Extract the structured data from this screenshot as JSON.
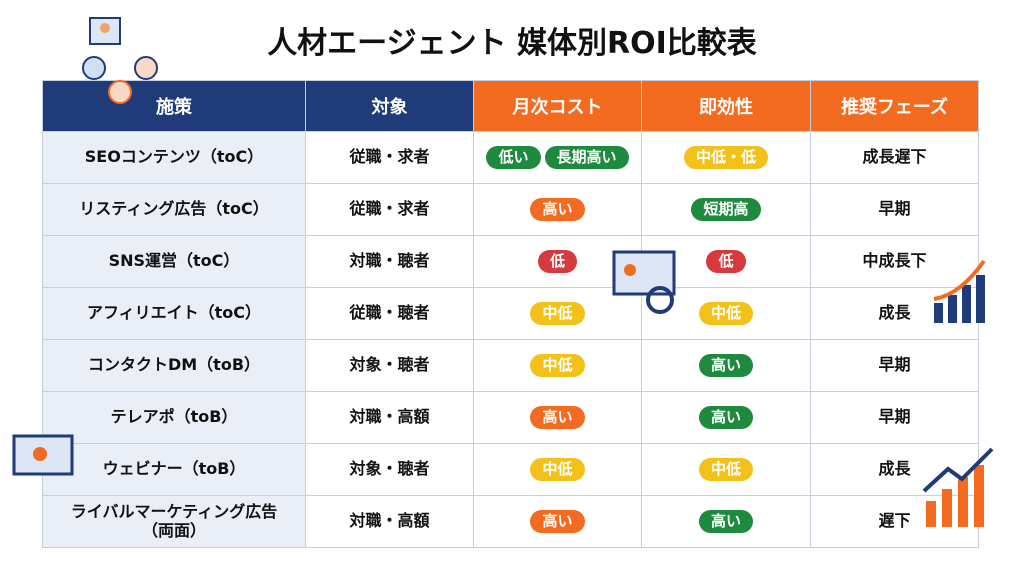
{
  "title": "人材エージェント 媒体別ROI比較表",
  "table": {
    "header": [
      "施策",
      "対象",
      "月次コスト",
      "即効性",
      "推奨フェーズ"
    ],
    "header_colors": [
      "#1f3b7a",
      "#1f3b7a",
      "#f26b21",
      "#f26b21",
      "#f26b21"
    ],
    "rows": [
      {
        "measure": "SEOコンテンツ（toC）",
        "target": "従職・求者",
        "cost": [
          {
            "text": "低い",
            "color": "#1e8a3e"
          },
          {
            "text": "長期高い",
            "color": "#1e8a3e"
          }
        ],
        "speed": [
          {
            "text": "中低・低",
            "color": "#f2c21b"
          }
        ],
        "phase": "成長遅下"
      },
      {
        "measure": "リスティング広告（toC）",
        "target": "従職・求者",
        "cost": [
          {
            "text": "高い",
            "color": "#f26b21"
          }
        ],
        "speed": [
          {
            "text": "短期高",
            "color": "#1e8a3e"
          }
        ],
        "phase": "早期"
      },
      {
        "measure": "SNS運営（toC）",
        "target": "対職・聴者",
        "cost": [
          {
            "text": "低",
            "color": "#d63a3f"
          }
        ],
        "speed": [
          {
            "text": "低",
            "color": "#d63a3f"
          }
        ],
        "phase": "中成長下"
      },
      {
        "measure": "アフィリエイト（toC）",
        "target": "従職・聴者",
        "cost": [
          {
            "text": "中低",
            "color": "#f2c21b"
          }
        ],
        "speed": [
          {
            "text": "中低",
            "color": "#f2c21b"
          }
        ],
        "phase": "成長"
      },
      {
        "measure": "コンタクトDM（toB）",
        "target": "対象・聴者",
        "cost": [
          {
            "text": "中低",
            "color": "#f2c21b"
          }
        ],
        "speed": [
          {
            "text": "高い",
            "color": "#1e8a3e"
          }
        ],
        "phase": "早期"
      },
      {
        "measure": "テレアポ（toB）",
        "target": "対職・高額",
        "cost": [
          {
            "text": "高い",
            "color": "#f26b21"
          }
        ],
        "speed": [
          {
            "text": "高い",
            "color": "#1e8a3e"
          }
        ],
        "phase": "早期"
      },
      {
        "measure": "ウェビナー（toB）",
        "target": "対象・聴者",
        "cost": [
          {
            "text": "中低",
            "color": "#f2c21b"
          }
        ],
        "speed": [
          {
            "text": "中低",
            "color": "#f2c21b"
          }
        ],
        "phase": "成長"
      },
      {
        "measure": "ライバルマーケティング広告\n（両面）",
        "target": "対職・高額",
        "cost": [
          {
            "text": "高い",
            "color": "#f26b21"
          }
        ],
        "speed": [
          {
            "text": "高い",
            "color": "#1e8a3e"
          }
        ],
        "phase": "遅下"
      }
    ]
  }
}
